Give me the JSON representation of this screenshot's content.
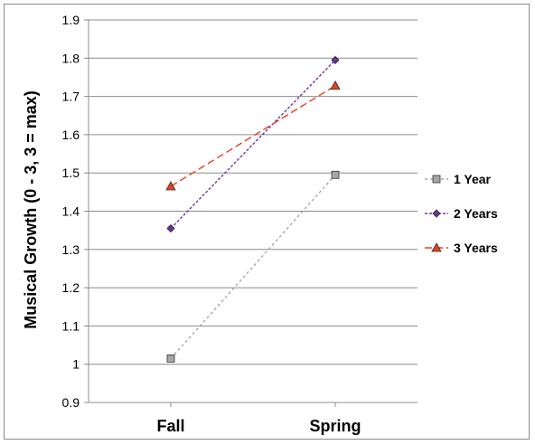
{
  "chart_data": {
    "type": "line",
    "categories": [
      "Fall",
      "Spring"
    ],
    "series": [
      {
        "name": "1 Year",
        "values": [
          1.015,
          1.495
        ],
        "color": "#a6a6a6",
        "marker": "square",
        "dash": "3,3"
      },
      {
        "name": "2 Years",
        "values": [
          1.355,
          1.795
        ],
        "color": "#7030a0",
        "marker": "diamond",
        "dash": "3,2"
      },
      {
        "name": "3 Years",
        "values": [
          1.465,
          1.728
        ],
        "color": "#e8401c",
        "marker": "triangle",
        "dash": "8,4"
      }
    ],
    "ylabel": "Musical Growth (0 - 3, 3 = max)",
    "ylim": [
      0.9,
      1.9
    ],
    "yticks": [
      "0.9",
      "1",
      "1.1",
      "1.2",
      "1.3",
      "1.4",
      "1.5",
      "1.6",
      "1.7",
      "1.8",
      "1.9"
    ],
    "grid": true,
    "legend_position": "right"
  }
}
